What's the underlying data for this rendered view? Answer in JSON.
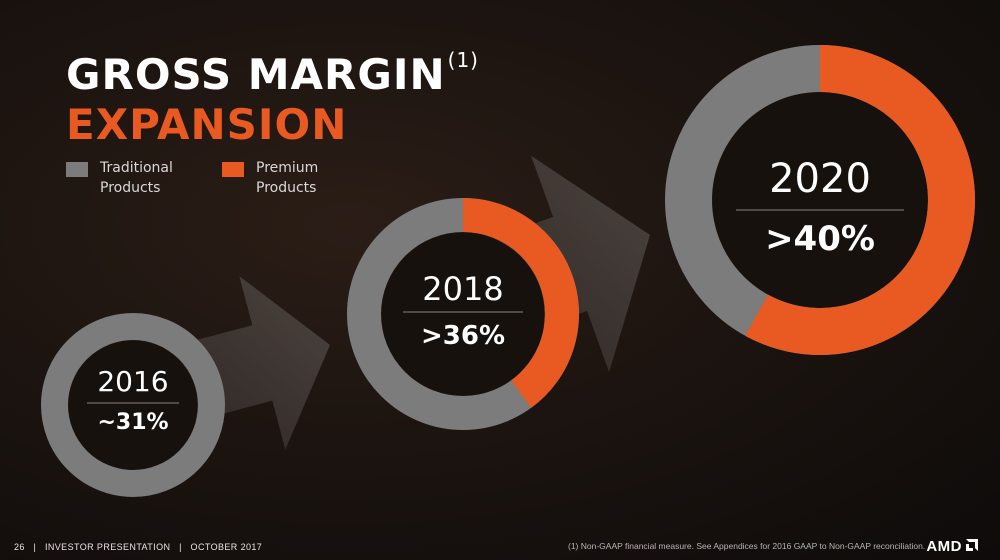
{
  "title": {
    "line1": "GROSS MARGIN",
    "footnote_marker": "(1)",
    "line2": "EXPANSION"
  },
  "legend": [
    {
      "line1": "Traditional",
      "line2": "Products",
      "color": "#7c7c7c"
    },
    {
      "line1": "Premium",
      "line2": "Products",
      "color": "#e95a22"
    }
  ],
  "chart_data": {
    "type": "donut",
    "series_names": [
      "Traditional Products",
      "Premium Products"
    ],
    "colors": {
      "traditional": "#7c7c7c",
      "premium": "#e95a22"
    },
    "donuts": [
      {
        "year": "2016",
        "label": "~31%",
        "premium_share": 0.0
      },
      {
        "year": "2018",
        "label": ">36%",
        "premium_share": 0.4
      },
      {
        "year": "2020",
        "label": ">40%",
        "premium_share": 0.58
      }
    ]
  },
  "footer": {
    "page": "26",
    "sep": "|",
    "deck": "INVESTOR PRESENTATION",
    "date": "OCTOBER 2017",
    "note": "(1) Non-GAAP financial measure. See Appendices for 2016 GAAP to Non-GAAP reconciliation.",
    "logo": "AMD"
  }
}
